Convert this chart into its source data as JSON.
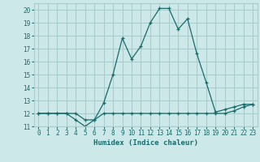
{
  "xlabel": "Humidex (Indice chaleur)",
  "ylabel": "",
  "bg_color": "#cce8e8",
  "grid_color": "#aacccc",
  "line_color": "#1a6b6b",
  "xlim": [
    -0.5,
    23.5
  ],
  "ylim": [
    11,
    20.5
  ],
  "xticks": [
    0,
    1,
    2,
    3,
    4,
    5,
    6,
    7,
    8,
    9,
    10,
    11,
    12,
    13,
    14,
    15,
    16,
    17,
    18,
    19,
    20,
    21,
    22,
    23
  ],
  "yticks": [
    11,
    12,
    13,
    14,
    15,
    16,
    17,
    18,
    19,
    20
  ],
  "line1_x": [
    0,
    1,
    2,
    3,
    4,
    5,
    6,
    7,
    8,
    9,
    10,
    11,
    12,
    13,
    14,
    15,
    16,
    17,
    18,
    19,
    20,
    21,
    22,
    23
  ],
  "line1_y": [
    12,
    12,
    12,
    12,
    11.5,
    11,
    11.5,
    12.8,
    15,
    17.8,
    16.2,
    17.2,
    19.0,
    20.1,
    20.1,
    18.5,
    19.3,
    16.6,
    14.4,
    12.1,
    12.3,
    12.5,
    12.7,
    12.7
  ],
  "line2_x": [
    0,
    1,
    2,
    3,
    4,
    5,
    6,
    7,
    8,
    9,
    10,
    11,
    12,
    13,
    14,
    15,
    16,
    17,
    18,
    19,
    20,
    21,
    22,
    23
  ],
  "line2_y": [
    12,
    12,
    12,
    12,
    12,
    11.5,
    11.5,
    12,
    12,
    12,
    12,
    12,
    12,
    12,
    12,
    12,
    12,
    12,
    12,
    12,
    12,
    12.2,
    12.5,
    12.7
  ]
}
